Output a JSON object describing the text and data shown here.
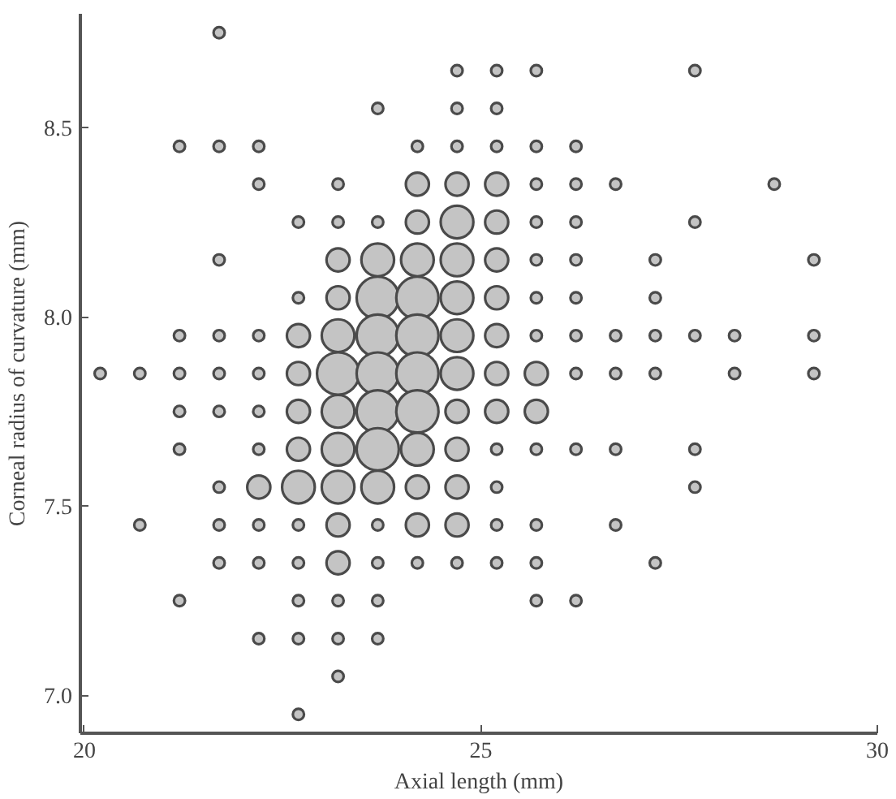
{
  "chart_data": {
    "type": "bubble",
    "xlabel": "Axial length (mm)",
    "ylabel": "Corneal radius of curvature (mm)",
    "xlim": [
      19.95,
      30
    ],
    "ylim": [
      6.9,
      8.8
    ],
    "xticks": [
      20,
      25,
      30
    ],
    "yticks": [
      {
        "value": 7,
        "label": "7.0"
      },
      {
        "value": 7.5,
        "label": "7.5"
      },
      {
        "value": 8,
        "label": "8.0"
      },
      {
        "value": 8.5,
        "label": "8.5"
      }
    ],
    "grid": false,
    "marker": "circle",
    "series": [
      {
        "color": "#c4c4c4",
        "x": [
          21.7,
          24.7,
          25.2,
          25.7,
          27.7,
          23.7,
          24.7,
          25.2,
          21.2,
          21.7,
          22.2,
          24.2,
          24.7,
          25.2,
          25.7,
          26.2,
          22.2,
          23.2,
          24.2,
          24.7,
          25.2,
          25.7,
          26.2,
          26.7,
          28.7,
          22.7,
          23.2,
          23.7,
          24.2,
          24.7,
          25.2,
          25.7,
          26.2,
          27.7,
          21.7,
          23.2,
          23.7,
          24.2,
          24.7,
          25.2,
          25.7,
          26.2,
          27.2,
          29.2,
          22.7,
          23.2,
          23.7,
          24.2,
          24.7,
          25.2,
          25.7,
          26.2,
          27.2,
          21.2,
          21.7,
          22.2,
          22.7,
          23.2,
          23.7,
          24.2,
          24.7,
          25.2,
          25.7,
          26.2,
          26.7,
          27.2,
          27.7,
          28.2,
          29.2,
          20.2,
          20.7,
          21.2,
          21.7,
          22.2,
          22.7,
          23.2,
          23.7,
          24.2,
          24.7,
          25.2,
          25.7,
          26.2,
          26.7,
          27.2,
          28.2,
          29.2,
          21.2,
          21.7,
          22.2,
          22.7,
          23.2,
          23.7,
          24.2,
          24.7,
          25.2,
          25.7,
          21.2,
          22.2,
          22.7,
          23.2,
          23.7,
          24.2,
          24.7,
          25.2,
          25.7,
          26.2,
          26.7,
          27.7,
          21.7,
          22.2,
          22.7,
          23.2,
          23.7,
          24.2,
          24.7,
          25.2,
          27.7,
          20.7,
          21.7,
          22.2,
          22.7,
          23.2,
          23.7,
          24.2,
          24.7,
          25.2,
          25.7,
          26.7,
          21.7,
          22.2,
          22.7,
          23.2,
          23.7,
          24.2,
          24.7,
          25.2,
          25.7,
          27.2,
          21.2,
          22.7,
          23.2,
          23.7,
          25.7,
          26.2,
          22.2,
          22.7,
          23.2,
          23.7,
          23.2,
          22.7
        ],
        "values": [
          8.75,
          8.65,
          8.65,
          8.65,
          8.65,
          8.55,
          8.55,
          8.55,
          8.45,
          8.45,
          8.45,
          8.45,
          8.45,
          8.45,
          8.45,
          8.45,
          8.35,
          8.35,
          8.35,
          8.35,
          8.35,
          8.35,
          8.35,
          8.35,
          8.35,
          8.25,
          8.25,
          8.25,
          8.25,
          8.25,
          8.25,
          8.25,
          8.25,
          8.25,
          8.15,
          8.15,
          8.15,
          8.15,
          8.15,
          8.15,
          8.15,
          8.15,
          8.15,
          8.15,
          8.05,
          8.05,
          8.05,
          8.05,
          8.05,
          8.05,
          8.05,
          8.05,
          8.05,
          7.95,
          7.95,
          7.95,
          7.95,
          7.95,
          7.95,
          7.95,
          7.95,
          7.95,
          7.95,
          7.95,
          7.95,
          7.95,
          7.95,
          7.95,
          7.95,
          7.85,
          7.85,
          7.85,
          7.85,
          7.85,
          7.85,
          7.85,
          7.85,
          7.85,
          7.85,
          7.85,
          7.85,
          7.85,
          7.85,
          7.85,
          7.85,
          7.85,
          7.75,
          7.75,
          7.75,
          7.75,
          7.75,
          7.75,
          7.75,
          7.75,
          7.75,
          7.75,
          7.65,
          7.65,
          7.65,
          7.65,
          7.65,
          7.65,
          7.65,
          7.65,
          7.65,
          7.65,
          7.65,
          7.65,
          7.55,
          7.55,
          7.55,
          7.55,
          7.55,
          7.55,
          7.55,
          7.55,
          7.55,
          7.45,
          7.45,
          7.45,
          7.45,
          7.45,
          7.45,
          7.45,
          7.45,
          7.45,
          7.45,
          7.45,
          7.35,
          7.35,
          7.35,
          7.35,
          7.35,
          7.35,
          7.35,
          7.35,
          7.35,
          7.35,
          7.25,
          7.25,
          7.25,
          7.25,
          7.25,
          7.25,
          7.15,
          7.15,
          7.15,
          7.15,
          7.05,
          6.95
        ],
        "sizes": [
          0.07,
          0.07,
          0.07,
          0.07,
          0.07,
          0.07,
          0.07,
          0.07,
          0.07,
          0.07,
          0.07,
          0.07,
          0.07,
          0.07,
          0.07,
          0.07,
          0.07,
          0.07,
          0.3,
          0.3,
          0.3,
          0.07,
          0.07,
          0.07,
          0.07,
          0.07,
          0.07,
          0.07,
          0.3,
          0.6,
          0.3,
          0.07,
          0.07,
          0.07,
          0.07,
          0.3,
          0.6,
          0.6,
          0.6,
          0.3,
          0.07,
          0.07,
          0.07,
          0.07,
          0.07,
          0.3,
          1,
          1,
          0.6,
          0.3,
          0.07,
          0.07,
          0.07,
          0.07,
          0.07,
          0.07,
          0.3,
          0.6,
          1,
          1,
          0.6,
          0.3,
          0.07,
          0.07,
          0.07,
          0.07,
          0.07,
          0.07,
          0.07,
          0.07,
          0.07,
          0.07,
          0.07,
          0.07,
          0.3,
          1,
          1,
          1,
          0.6,
          0.3,
          0.3,
          0.07,
          0.07,
          0.07,
          0.07,
          0.07,
          0.07,
          0.07,
          0.07,
          0.3,
          0.6,
          1,
          1,
          0.3,
          0.3,
          0.3,
          0.07,
          0.07,
          0.3,
          0.6,
          1,
          0.6,
          0.3,
          0.07,
          0.07,
          0.07,
          0.07,
          0.07,
          0.07,
          0.3,
          0.6,
          0.6,
          0.6,
          0.3,
          0.3,
          0.07,
          0.07,
          0.07,
          0.07,
          0.07,
          0.07,
          0.3,
          0.07,
          0.3,
          0.3,
          0.07,
          0.07,
          0.07,
          0.07,
          0.07,
          0.07,
          0.3,
          0.07,
          0.07,
          0.07,
          0.07,
          0.07,
          0.07,
          0.07,
          0.07,
          0.07,
          0.07,
          0.07,
          0.07,
          0.07,
          0.07,
          0.07,
          0.07,
          0.07,
          0.07
        ]
      }
    ]
  }
}
